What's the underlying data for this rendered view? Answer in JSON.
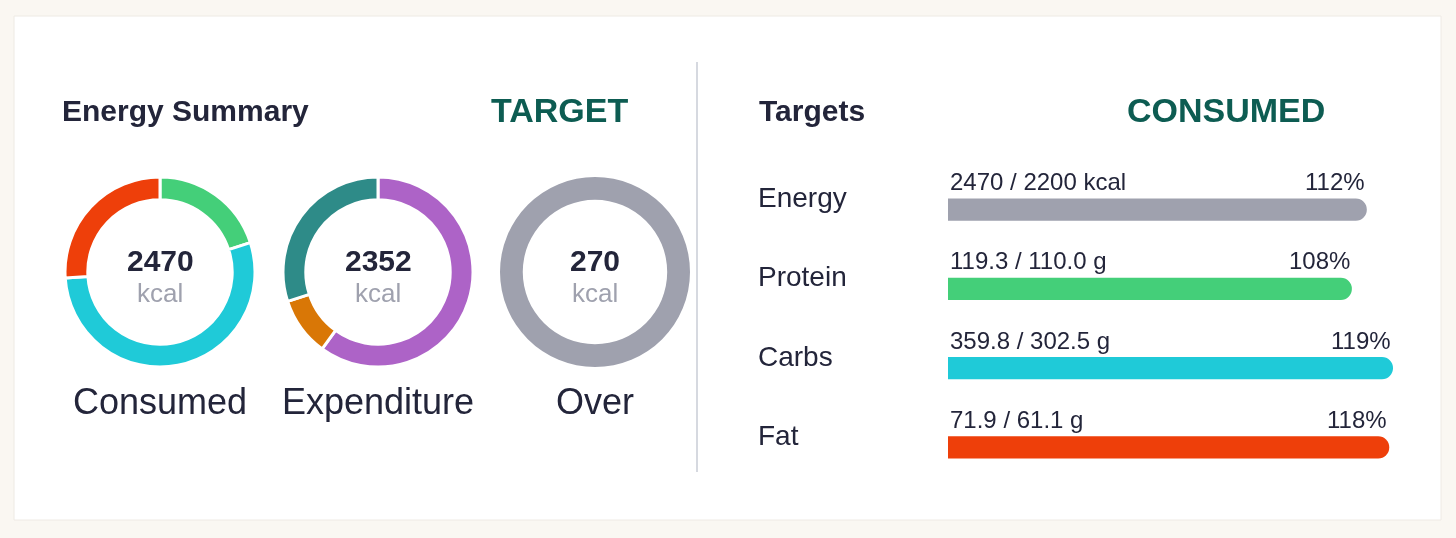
{
  "chart_data": [
    {
      "type": "other",
      "title": "Energy Summary",
      "annotations": [
        "TARGET"
      ]
    },
    {
      "type": "donut",
      "title": "Consumed",
      "categories": [
        null,
        null,
        null
      ],
      "values": [
        20,
        54,
        26
      ],
      "colors": [
        "#44cf79",
        "#1fcad8",
        "#ee3f0a"
      ],
      "annotations": [
        "2470",
        "kcal"
      ]
    },
    {
      "type": "donut",
      "title": "Expenditure",
      "categories": [
        null,
        null,
        null
      ],
      "values": [
        60,
        10,
        30
      ],
      "colors": [
        "#ad63c7",
        "#d97706",
        "#2e8b88"
      ],
      "annotations": [
        "2352",
        "kcal"
      ]
    },
    {
      "type": "pie",
      "title": "Over",
      "categories": [
        null
      ],
      "values": [
        100
      ],
      "colors": [
        "#9fa1ae"
      ],
      "annotations": [
        "270",
        "kcal"
      ]
    },
    {
      "type": "bar",
      "title": "Targets",
      "orientation": "horizontal",
      "categories": [
        "Energy",
        "Protein",
        "Carbs",
        "Fat"
      ],
      "values": [
        112,
        108,
        119,
        118
      ],
      "colors": [
        "#9fa1ae",
        "#44cf79",
        "#1fcad8",
        "#ee3f0a"
      ],
      "value_labels": [
        "112%",
        "108%",
        "119%",
        "118%"
      ],
      "annotations": [
        "CONSUMED",
        "2470 / 2200 kcal",
        "119.3 / 110.0 g",
        "359.8 / 302.5 g",
        "71.9 / 61.1 g"
      ]
    }
  ]
}
